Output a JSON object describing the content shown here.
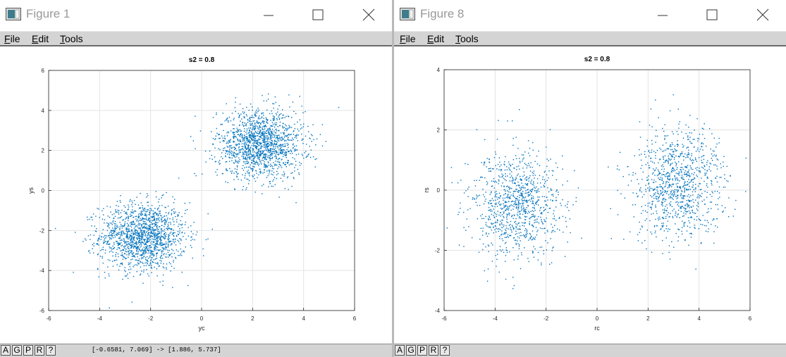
{
  "windows": [
    {
      "title": "Figure 1",
      "menus": [
        {
          "label": "File",
          "hot": "F",
          "rest": "ile"
        },
        {
          "label": "Edit",
          "hot": "E",
          "rest": "dit"
        },
        {
          "label": "Tools",
          "hot": "T",
          "rest": "ools"
        }
      ],
      "status_buttons": [
        "A",
        "G",
        "P",
        "R",
        "?"
      ],
      "coord_readout": "[-0.6581, 7.069] -> [1.886, 5.737]",
      "chart_data": {
        "type": "scatter",
        "title": "s2 = 0.8",
        "xlabel": "yc",
        "ylabel": "ys",
        "xlim": [
          -6,
          6
        ],
        "ylim": [
          -6,
          6
        ],
        "xticks": [
          -6,
          -4,
          -2,
          0,
          2,
          4,
          6
        ],
        "yticks": [
          -6,
          -4,
          -2,
          0,
          2,
          4,
          6
        ],
        "grid": true,
        "marker_color": "#0072bd",
        "clusters": [
          {
            "center": [
              -2.3,
              -2.3
            ],
            "std": [
              0.85,
              0.85
            ],
            "count": 1500
          },
          {
            "center": [
              2.3,
              2.3
            ],
            "std": [
              0.85,
              0.85
            ],
            "count": 1500
          }
        ]
      }
    },
    {
      "title": "Figure 8",
      "menus": [
        {
          "label": "File",
          "hot": "F",
          "rest": "ile"
        },
        {
          "label": "Edit",
          "hot": "E",
          "rest": "dit"
        },
        {
          "label": "Tools",
          "hot": "T",
          "rest": "ools"
        }
      ],
      "status_buttons": [
        "A",
        "G",
        "P",
        "R",
        "?"
      ],
      "coord_readout": "",
      "chart_data": {
        "type": "scatter",
        "title": "s2 = 0.8",
        "xlabel": "rc",
        "ylabel": "rs",
        "xlim": [
          -6,
          6
        ],
        "ylim": [
          -4,
          4
        ],
        "xticks": [
          -6,
          -4,
          -2,
          0,
          2,
          4,
          6
        ],
        "yticks": [
          -4,
          -2,
          0,
          2,
          4
        ],
        "grid": true,
        "marker_color": "#0072bd",
        "clusters": [
          {
            "center": [
              -3.2,
              -0.5
            ],
            "std": [
              0.9,
              0.9
            ],
            "count": 1000
          },
          {
            "center": [
              3.2,
              0.2
            ],
            "std": [
              0.9,
              0.9
            ],
            "count": 1000
          }
        ]
      }
    }
  ]
}
